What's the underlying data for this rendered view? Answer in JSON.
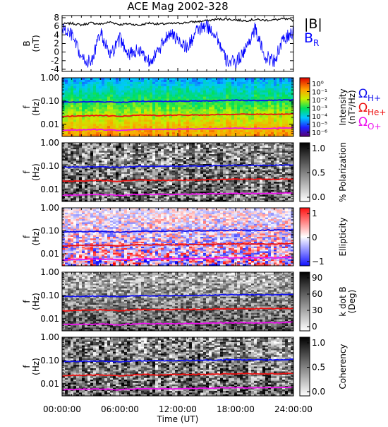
{
  "title": "ACE Mag 2002-328",
  "xlabel": "Time (UT)",
  "x_ticks": [
    "00:00:00",
    "06:00:00",
    "12:00:00",
    "18:00:00",
    "24:00:00"
  ],
  "legend_B": {
    "total": "|B|",
    "radial": "B",
    "radial_sub": "R"
  },
  "gyro_legend": [
    {
      "sym": "Ω",
      "sub": "H+",
      "color": "#1010ee"
    },
    {
      "sym": "Ω",
      "sub": "He+",
      "color": "#ee1010"
    },
    {
      "sym": "Ω",
      "sub": "O+",
      "color": "#ee10ee"
    }
  ],
  "colors": {
    "total_field": "#000000",
    "radial_field": "#0000ff",
    "H": "#1010ee",
    "He": "#ee1010",
    "O": "#ee10ee"
  },
  "chart_data": [
    {
      "type": "line",
      "panel": "magnetic-field",
      "ylabel": "B",
      "yunit": "(nT)",
      "ylim": [
        -4.5,
        8.5
      ],
      "y_ticks": [
        "-4",
        "-2",
        "0",
        "2",
        "4",
        "6",
        "8"
      ],
      "xlim": [
        0,
        24
      ],
      "series": [
        {
          "name": "|B|",
          "color": "#000000",
          "x": [
            0,
            1,
            2,
            3,
            4,
            5,
            6,
            7,
            8,
            9,
            10,
            11,
            12,
            13,
            14,
            15,
            16,
            17,
            18,
            19,
            20,
            21,
            22,
            23,
            24
          ],
          "values": [
            6.5,
            6.7,
            6.3,
            6.8,
            6.5,
            7.0,
            6.4,
            6.6,
            6.2,
            6.8,
            6.5,
            6.6,
            6.7,
            6.9,
            7.1,
            7.3,
            7.6,
            7.7,
            7.5,
            7.3,
            7.6,
            7.4,
            7.5,
            7.7,
            7.4
          ]
        },
        {
          "name": "B",
          "name_sub": "R",
          "color": "#0000ff",
          "x": [
            0,
            1,
            2,
            3,
            4,
            5,
            6,
            7,
            8,
            9,
            10,
            11,
            12,
            13,
            14,
            15,
            16,
            17,
            18,
            19,
            20,
            21,
            22,
            23,
            24
          ],
          "values": [
            5.5,
            4.0,
            -1.5,
            -2.5,
            4.5,
            -1.0,
            3.0,
            -0.5,
            0.5,
            -2.0,
            0.0,
            4.5,
            3.0,
            1.0,
            5.0,
            6.0,
            4.0,
            -2.0,
            -2.5,
            0.5,
            5.5,
            -1.0,
            -2.0,
            3.0,
            4.5
          ]
        }
      ]
    },
    {
      "type": "heatmap",
      "panel": "intensity",
      "ylabel": "f",
      "yunit": "(Hz)",
      "yscale": "log",
      "ylim": [
        0.003,
        1.0
      ],
      "y_ticks": [
        "1.00",
        "0.10",
        "0.01"
      ],
      "colorbar_label": "Intensity",
      "colorbar_unit": "(nT²/Hz)",
      "colorbar_ticks": [
        "10⁰",
        "10⁻¹",
        "10⁻²",
        "10⁻³",
        "10⁻⁴",
        "10⁻⁵",
        "10⁻⁶"
      ],
      "colormap": "rainbow"
    },
    {
      "type": "heatmap",
      "panel": "polarization",
      "ylabel": "f",
      "yunit": "(Hz)",
      "yscale": "log",
      "ylim": [
        0.003,
        1.0
      ],
      "y_ticks": [
        "1.00",
        "0.10",
        "0.01"
      ],
      "colorbar_label": "% Polarization",
      "colorbar_ticks": [
        "1.0",
        "0.5",
        "0.0"
      ],
      "colormap": "gray"
    },
    {
      "type": "heatmap",
      "panel": "ellipticity",
      "ylabel": "f",
      "yunit": "(Hz)",
      "yscale": "log",
      "ylim": [
        0.003,
        1.0
      ],
      "y_ticks": [
        "1.00",
        "0.10",
        "0.01"
      ],
      "colorbar_label": "Ellipticity",
      "colorbar_ticks": [
        "1",
        "0",
        "−1"
      ],
      "colormap": "blue-white-red"
    },
    {
      "type": "heatmap",
      "panel": "kdotb",
      "ylabel": "f",
      "yunit": "(Hz)",
      "yscale": "log",
      "ylim": [
        0.003,
        1.0
      ],
      "y_ticks": [
        "1.00",
        "0.10",
        "0.01"
      ],
      "colorbar_label": "k dot B",
      "colorbar_unit": "(Deg)",
      "colorbar_ticks": [
        "90",
        "60",
        "30",
        "0"
      ],
      "colormap": "gray"
    },
    {
      "type": "heatmap",
      "panel": "coherency",
      "ylabel": "f",
      "yunit": "(Hz)",
      "yscale": "log",
      "ylim": [
        0.003,
        1.0
      ],
      "y_ticks": [
        "1.00",
        "0.10",
        "0.01"
      ],
      "colorbar_label": "Coherency",
      "colorbar_ticks": [
        "1.0",
        "0.5",
        "0.0"
      ],
      "colormap": "gray"
    }
  ],
  "gyrofrequency_lines": {
    "x": [
      0,
      2,
      4,
      6,
      8,
      10,
      12,
      14,
      16,
      18,
      20,
      22,
      24
    ],
    "H": [
      0.09,
      0.092,
      0.094,
      0.088,
      0.098,
      0.096,
      0.098,
      0.1,
      0.104,
      0.108,
      0.106,
      0.108,
      0.112
    ],
    "He": [
      0.022,
      0.023,
      0.024,
      0.022,
      0.025,
      0.024,
      0.025,
      0.025,
      0.026,
      0.027,
      0.027,
      0.027,
      0.028
    ],
    "O": [
      0.0056,
      0.0058,
      0.0059,
      0.0055,
      0.0061,
      0.006,
      0.0061,
      0.0063,
      0.0065,
      0.0067,
      0.0066,
      0.0067,
      0.007
    ]
  }
}
